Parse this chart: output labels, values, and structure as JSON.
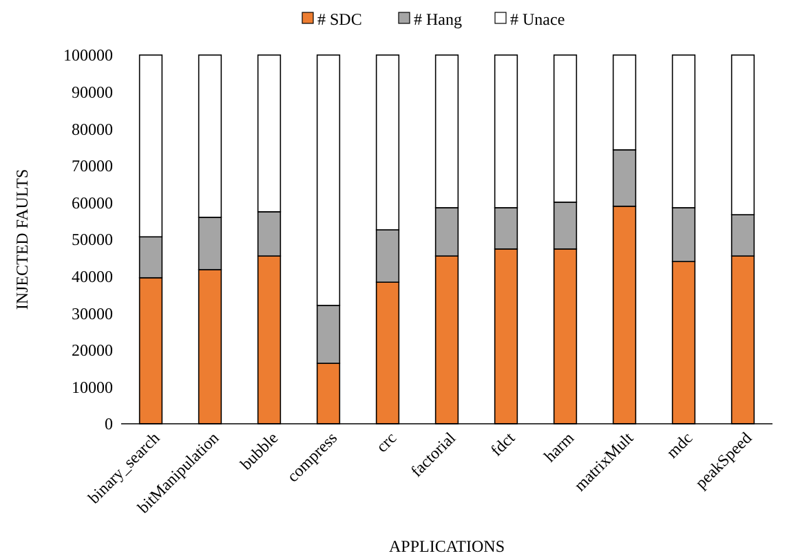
{
  "chart_data": {
    "type": "bar",
    "stacked": true,
    "xlabel": "APPLICATIONS",
    "ylabel": "INJECTED FAULTS",
    "categories": [
      "binary_search",
      "bitManipulation",
      "bubble",
      "compress",
      "crc",
      "factorial",
      "fdct",
      "harm",
      "matrixMult",
      "mdc",
      "peakSpeed"
    ],
    "series": [
      {
        "name": "# SDC",
        "color": "#ed7d31",
        "values": [
          39600,
          41800,
          45500,
          16400,
          38400,
          45500,
          47400,
          47400,
          59000,
          44000,
          45500
        ]
      },
      {
        "name": "# Hang",
        "color": "#a5a5a5",
        "values": [
          11100,
          14200,
          12000,
          15700,
          14200,
          13100,
          11200,
          12700,
          15300,
          14600,
          11200
        ]
      },
      {
        "name": "# Unace",
        "color": "#ffffff",
        "values": [
          49300,
          44000,
          42500,
          67900,
          47400,
          41400,
          41400,
          39900,
          25700,
          41400,
          43300
        ]
      }
    ],
    "ylim": [
      0,
      100000
    ],
    "yticks": [
      0,
      10000,
      20000,
      30000,
      40000,
      50000,
      60000,
      70000,
      80000,
      90000,
      100000
    ],
    "grid": false,
    "legend": "top"
  }
}
